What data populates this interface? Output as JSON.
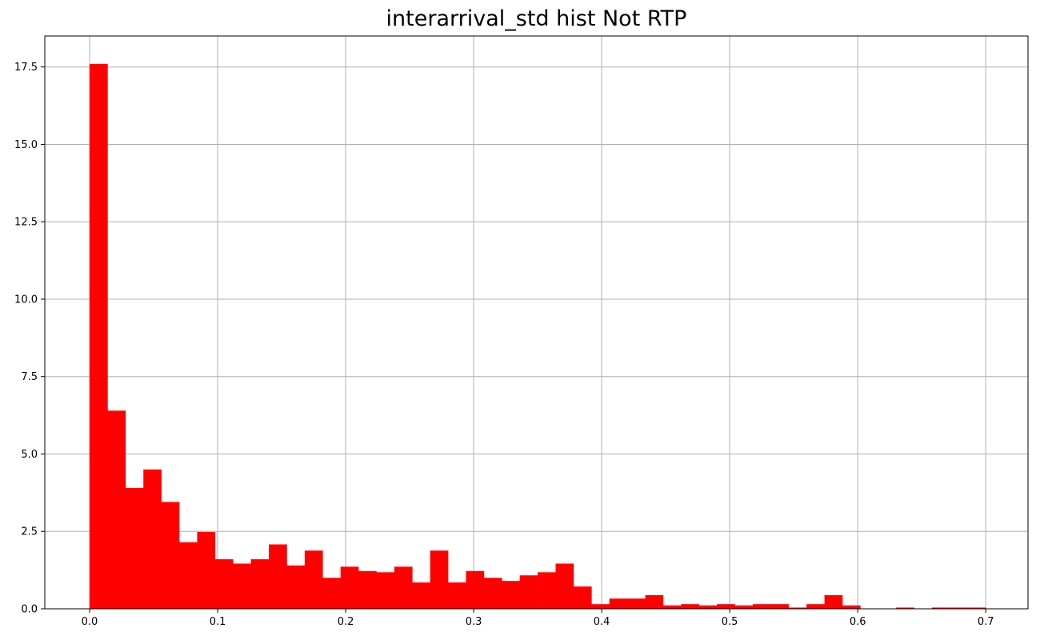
{
  "chart_data": {
    "type": "bar",
    "title": "interarrival_std hist Not RTP",
    "xlabel": "",
    "ylabel": "",
    "xlim": [
      -0.035,
      0.733
    ],
    "ylim": [
      0,
      18.5
    ],
    "grid": true,
    "bar_color": "#ff0000",
    "grid_color": "#b0b0b0",
    "xticks": [
      "0.0",
      "0.1",
      "0.2",
      "0.3",
      "0.4",
      "0.5",
      "0.6",
      "0.7"
    ],
    "xtick_values": [
      0.0,
      0.1,
      0.2,
      0.3,
      0.4,
      0.5,
      0.6,
      0.7
    ],
    "yticks": [
      "0.0",
      "2.5",
      "5.0",
      "7.5",
      "10.0",
      "12.5",
      "15.0",
      "17.5"
    ],
    "ytick_values": [
      0.0,
      2.5,
      5.0,
      7.5,
      10.0,
      12.5,
      15.0,
      17.5
    ],
    "bin_start": 0.0,
    "bin_width": 0.014,
    "values": [
      17.6,
      6.4,
      3.9,
      4.5,
      3.45,
      2.15,
      2.48,
      1.6,
      1.46,
      1.6,
      2.08,
      1.4,
      1.88,
      1.0,
      1.36,
      1.22,
      1.18,
      1.36,
      0.85,
      1.88,
      0.85,
      1.22,
      1.0,
      0.9,
      1.08,
      1.18,
      1.46,
      0.72,
      0.15,
      0.33,
      0.33,
      0.44,
      0.11,
      0.15,
      0.11,
      0.15,
      0.11,
      0.15,
      0.15,
      0.04,
      0.15,
      0.44,
      0.11,
      0.0,
      0.0,
      0.04,
      0.0,
      0.04,
      0.04,
      0.04
    ]
  }
}
